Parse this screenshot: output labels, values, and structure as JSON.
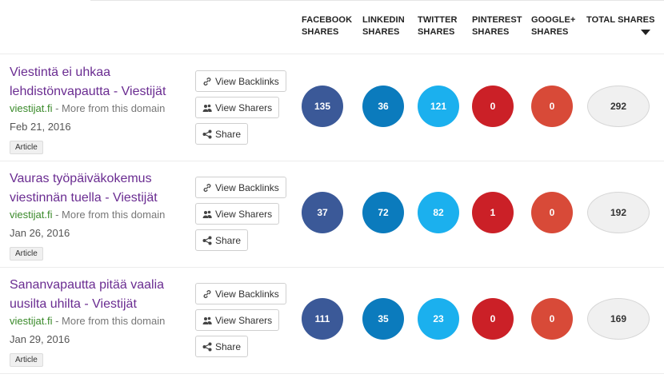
{
  "header": {
    "columns": [
      {
        "line1": "FACEBOOK",
        "line2": "SHARES"
      },
      {
        "line1": "LINKEDIN",
        "line2": "SHARES"
      },
      {
        "line1": "TWITTER",
        "line2": "SHARES"
      },
      {
        "line1": "PINTEREST",
        "line2": "SHARES"
      },
      {
        "line1": "GOOGLE+",
        "line2": "SHARES"
      },
      {
        "line1": "TOTAL SHARES",
        "line2": ""
      }
    ]
  },
  "buttons": {
    "backlinks": "View Backlinks",
    "sharers": "View Sharers",
    "share": "Share"
  },
  "rows": [
    {
      "title": "Viestintä ei uhkaa lehdistönvapautta - Viestijät",
      "domain": "viestijat.fi",
      "more": " - More from this domain",
      "date": "Feb 21, 2016",
      "tag": "Article",
      "facebook": "135",
      "linkedin": "36",
      "twitter": "121",
      "pinterest": "0",
      "googleplus": "0",
      "total": "292"
    },
    {
      "title": "Vauras työpäiväkokemus viestinnän tuella - Viestijät",
      "domain": "viestijat.fi",
      "more": " - More from this domain",
      "date": "Jan 26, 2016",
      "tag": "Article",
      "facebook": "37",
      "linkedin": "72",
      "twitter": "82",
      "pinterest": "1",
      "googleplus": "0",
      "total": "192"
    },
    {
      "title": "Sananvapautta pitää vaalia uusilta uhilta - Viestijät",
      "domain": "viestijat.fi",
      "more": " - More from this domain",
      "date": "Jan 29, 2016",
      "tag": "Article",
      "facebook": "111",
      "linkedin": "35",
      "twitter": "23",
      "pinterest": "0",
      "googleplus": "0",
      "total": "169"
    }
  ],
  "colors": {
    "facebook": "#3b5998",
    "linkedin": "#0b7bbd",
    "twitter": "#1bb0ee",
    "pinterest": "#cb2027",
    "googleplus": "#d84a38",
    "title": "#6a2c91",
    "domain": "#3a8a2a"
  },
  "icons": {
    "backlinks": "link-icon",
    "sharers": "users-icon",
    "share": "share-icon",
    "sort": "sort-desc-icon"
  }
}
